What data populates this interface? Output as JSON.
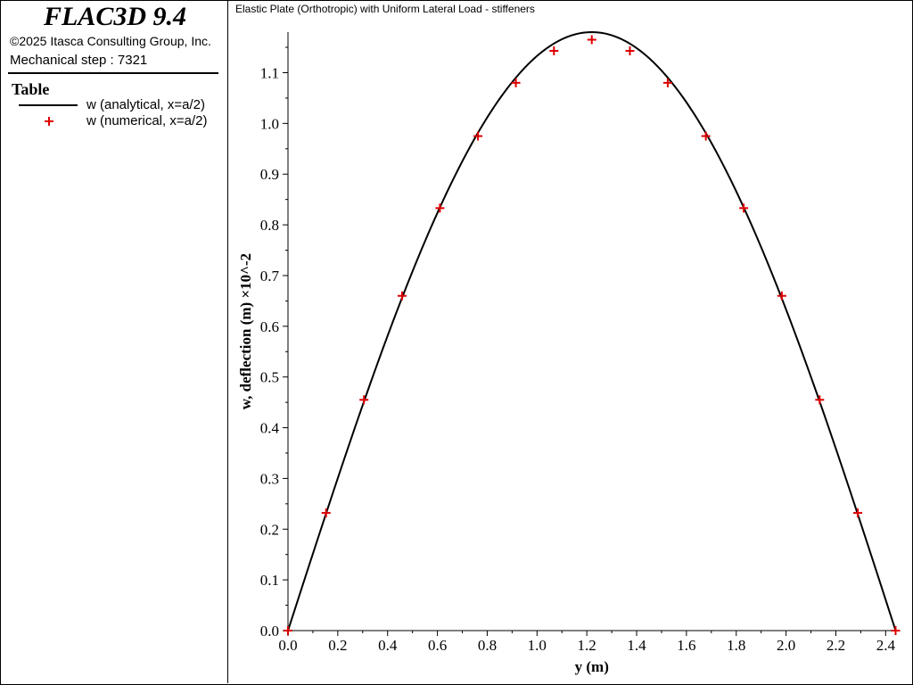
{
  "header": {
    "app_name": "FLAC3D 9.4",
    "copyright": "©2025 Itasca Consulting Group, Inc.",
    "step_text": "Mechanical step : 7321"
  },
  "legend": {
    "heading": "Table",
    "items": [
      {
        "label": "w (analytical, x=a/2)",
        "marker": "line",
        "color": "#000000"
      },
      {
        "label": "w (numerical, x=a/2)",
        "marker": "plus",
        "color": "#dd0000"
      }
    ]
  },
  "chart_data": {
    "type": "line",
    "title": "Elastic Plate (Orthotropic) with Uniform Lateral Load - stiffeners",
    "xlabel": "y (m)",
    "ylabel": "w, deflection (m) ×10^-2",
    "xlim": [
      0.0,
      2.44
    ],
    "ylim": [
      0.0,
      1.18
    ],
    "x_ticks": [
      "0.0",
      "0.2",
      "0.4",
      "0.6",
      "0.8",
      "1.0",
      "1.2",
      "1.4",
      "1.6",
      "1.8",
      "2.0",
      "2.2",
      "2.4"
    ],
    "y_ticks": [
      "0.0",
      "0.1",
      "0.2",
      "0.3",
      "0.4",
      "0.5",
      "0.6",
      "0.7",
      "0.8",
      "0.9",
      "1.0",
      "1.1"
    ],
    "grid": false,
    "legend_position": "left-panel",
    "series": [
      {
        "name": "w (analytical, x=a/2)",
        "style": "line",
        "color": "#000000",
        "peak": {
          "x": 1.22,
          "y": 1.18
        },
        "x": [
          0.0,
          0.153,
          0.305,
          0.458,
          0.61,
          0.763,
          0.915,
          1.068,
          1.22,
          1.373,
          1.525,
          1.678,
          1.83,
          1.983,
          2.135,
          2.288,
          2.44
        ]
      },
      {
        "name": "w (numerical, x=a/2)",
        "style": "plus",
        "color": "#dd0000",
        "x": [
          0.0,
          0.153,
          0.305,
          0.458,
          0.61,
          0.763,
          0.915,
          1.068,
          1.22,
          1.373,
          1.525,
          1.678,
          1.83,
          1.983,
          2.135,
          2.288,
          2.44
        ],
        "y": [
          0.0,
          0.232,
          0.455,
          0.66,
          0.833,
          0.975,
          1.08,
          1.143,
          1.165,
          1.143,
          1.08,
          0.975,
          0.833,
          0.66,
          0.455,
          0.232,
          0.0
        ]
      }
    ]
  }
}
